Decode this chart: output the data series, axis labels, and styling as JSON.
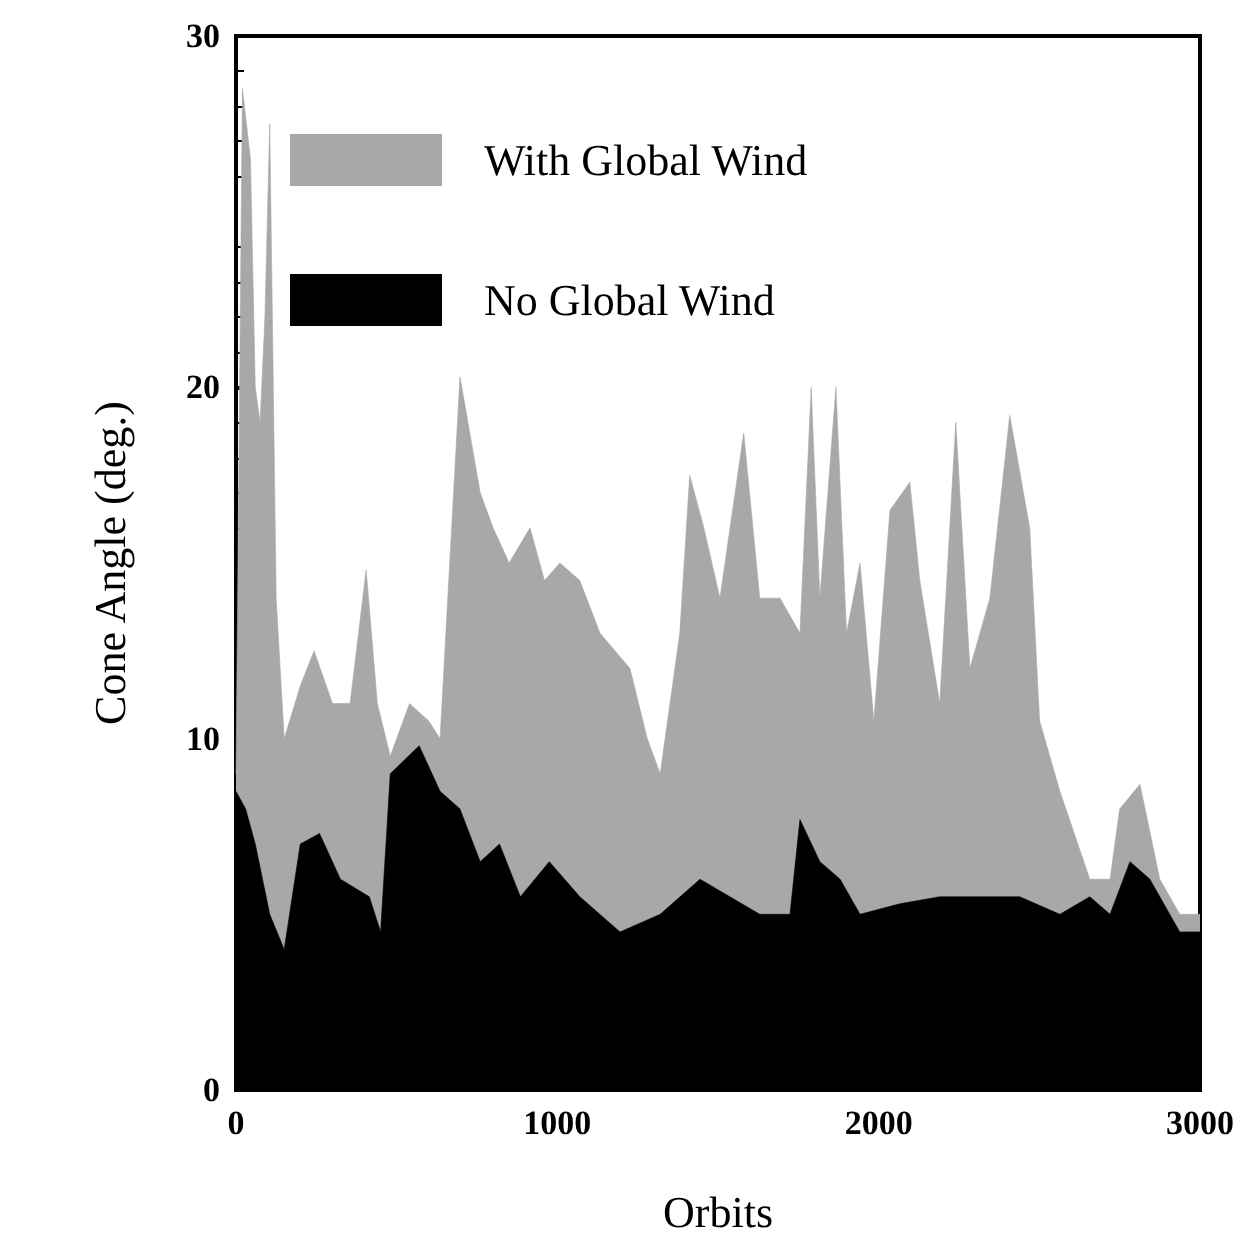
{
  "chart_data": {
    "type": "area",
    "xlabel": "Orbits",
    "ylabel": "Cone Angle (deg.)",
    "xlim": [
      0,
      3000
    ],
    "xticks": [
      0,
      1000,
      2000,
      3000
    ],
    "ylim": [
      0,
      30
    ],
    "yticks": [
      0,
      10,
      20,
      30
    ],
    "grid": false,
    "legend": "top left",
    "marker": "none",
    "series": [
      {
        "name": "With Global Wind",
        "color": "#a8a8a8",
        "x": [
          0,
          20,
          45,
          60,
          75,
          90,
          105,
          125,
          150,
          200,
          243,
          300,
          355,
          405,
          440,
          480,
          540,
          600,
          635,
          697,
          760,
          800,
          850,
          915,
          960,
          1008,
          1070,
          1133,
          1226,
          1280,
          1320,
          1381,
          1412,
          1456,
          1506,
          1580,
          1630,
          1693,
          1755,
          1790,
          1817,
          1867,
          1900,
          1942,
          1985,
          2035,
          2097,
          2128,
          2190,
          2240,
          2284,
          2346,
          2408,
          2470,
          2501,
          2564,
          2657,
          2720,
          2750,
          2813,
          2875,
          2937,
          3000
        ],
        "values": [
          9,
          28.5,
          26.5,
          20,
          19,
          22,
          27.5,
          14,
          10,
          11.5,
          12.5,
          11,
          11,
          14.8,
          11,
          9.5,
          11,
          10.5,
          10,
          20.3,
          17,
          16,
          15,
          16,
          14.5,
          15,
          14.5,
          13,
          12,
          10,
          9,
          13,
          17.5,
          16,
          14,
          18.7,
          14,
          14,
          13,
          20,
          14,
          20,
          13,
          15,
          10.5,
          16.5,
          17.3,
          14.5,
          11,
          19,
          12,
          14,
          19.2,
          16,
          10.5,
          8.5,
          6,
          6,
          8,
          8.7,
          6,
          5,
          5
        ]
      },
      {
        "name": "No Global Wind",
        "color": "#000000",
        "x": [
          0,
          30,
          60,
          105,
          150,
          200,
          260,
          325,
          415,
          450,
          480,
          570,
          635,
          697,
          760,
          820,
          885,
          975,
          1070,
          1195,
          1320,
          1444,
          1537,
          1630,
          1724,
          1755,
          1817,
          1880,
          1942,
          2066,
          2190,
          2315,
          2439,
          2564,
          2657,
          2720,
          2782,
          2844,
          2937,
          3000
        ],
        "values": [
          8.5,
          8,
          7,
          5,
          4,
          7,
          7.3,
          6,
          5.5,
          4.5,
          9,
          9.8,
          8.5,
          8,
          6.5,
          7,
          5.5,
          6.5,
          5.5,
          4.5,
          5,
          6,
          5.5,
          5,
          5,
          7.7,
          6.5,
          6,
          5,
          5.3,
          5.5,
          5.5,
          5.5,
          5,
          5.5,
          5,
          6.5,
          6,
          4.5,
          4.5
        ]
      }
    ]
  }
}
